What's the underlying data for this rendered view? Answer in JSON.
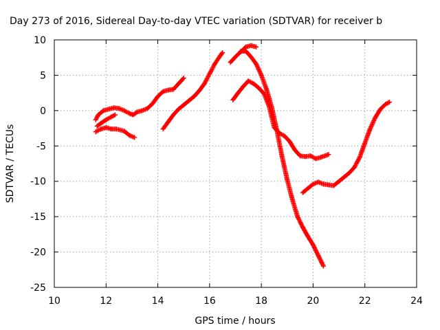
{
  "chart_data": {
    "type": "scatter",
    "title": "Day 273 of 2016, Sidereal Day-to-day VTEC variation (SDTVAR) for receiver b",
    "xlabel": "GPS time / hours",
    "ylabel": "SDTVAR / TECUs",
    "xlim": [
      10,
      24
    ],
    "ylim": [
      -25,
      10
    ],
    "xticks": [
      10,
      12,
      14,
      16,
      18,
      20,
      22,
      24
    ],
    "yticks": [
      -25,
      -20,
      -15,
      -10,
      -5,
      0,
      5,
      10
    ],
    "grid": true,
    "marker": "plus",
    "color": "#ff0000",
    "series": [
      {
        "x": [
          11.6,
          11.7,
          11.9,
          12.1,
          12.3,
          12.5,
          12.7,
          12.9,
          13.05
        ],
        "y": [
          -1.3,
          -0.6,
          0.0,
          0.2,
          0.4,
          0.3,
          0.0,
          -0.4,
          -0.6
        ]
      },
      {
        "x": [
          11.6,
          11.8,
          12.0,
          12.2,
          12.4,
          12.7,
          12.9,
          13.1
        ],
        "y": [
          -3.0,
          -2.6,
          -2.4,
          -2.6,
          -2.6,
          -2.9,
          -3.5,
          -3.8
        ]
      },
      {
        "x": [
          11.65,
          11.8,
          12.0,
          12.2,
          12.35
        ],
        "y": [
          -2.2,
          -1.8,
          -1.3,
          -0.9,
          -0.6
        ]
      },
      {
        "x": [
          13.05,
          13.2,
          13.4,
          13.6,
          13.8,
          14.0,
          14.2,
          14.4,
          14.6,
          14.8,
          15.0
        ],
        "y": [
          -0.6,
          -0.2,
          0.0,
          0.3,
          1.0,
          2.0,
          2.7,
          2.9,
          3.0,
          3.8,
          4.6
        ]
      },
      {
        "x": [
          14.2,
          14.4,
          14.6,
          14.8,
          15.0,
          15.2,
          15.4,
          15.6,
          15.8,
          16.0,
          16.2,
          16.4,
          16.5
        ],
        "y": [
          -2.6,
          -1.6,
          -0.6,
          0.2,
          0.8,
          1.4,
          2.0,
          2.8,
          3.8,
          5.2,
          6.6,
          7.7,
          8.2
        ]
      },
      {
        "x": [
          16.8,
          17.0,
          17.2,
          17.4,
          17.6,
          17.8
        ],
        "y": [
          6.8,
          7.6,
          8.3,
          9.0,
          9.2,
          9.0
        ]
      },
      {
        "x": [
          17.2,
          17.4,
          17.6,
          17.8,
          18.0,
          18.2,
          18.4,
          18.6,
          18.8,
          19.0,
          19.2,
          19.4,
          19.6,
          19.8,
          20.0,
          20.2,
          20.4
        ],
        "y": [
          8.4,
          8.4,
          7.6,
          6.6,
          5.0,
          3.0,
          0.5,
          -2.8,
          -6.5,
          -9.8,
          -12.6,
          -15.0,
          -16.5,
          -17.8,
          -19.0,
          -20.5,
          -22.0
        ]
      },
      {
        "x": [
          16.9,
          17.1,
          17.3,
          17.5,
          17.7,
          17.9,
          18.1,
          18.3,
          18.5,
          18.7,
          18.9,
          19.1,
          19.3,
          19.5,
          19.7,
          19.9,
          20.1,
          20.3,
          20.6
        ],
        "y": [
          1.5,
          2.5,
          3.4,
          4.2,
          3.8,
          3.2,
          2.4,
          0.6,
          -2.4,
          -3.2,
          -3.6,
          -4.4,
          -5.6,
          -6.4,
          -6.5,
          -6.4,
          -6.8,
          -6.6,
          -6.2
        ]
      },
      {
        "x": [
          19.6,
          19.8,
          20.0,
          20.2,
          20.4,
          20.6,
          20.8,
          21.0,
          21.2,
          21.4,
          21.6,
          21.8,
          22.0,
          22.2,
          22.4,
          22.6,
          22.8,
          22.95
        ],
        "y": [
          -11.6,
          -11.0,
          -10.4,
          -10.1,
          -10.4,
          -10.5,
          -10.6,
          -10.0,
          -9.4,
          -8.8,
          -8.0,
          -6.6,
          -4.6,
          -2.6,
          -1.0,
          0.2,
          0.9,
          1.2
        ]
      }
    ]
  }
}
